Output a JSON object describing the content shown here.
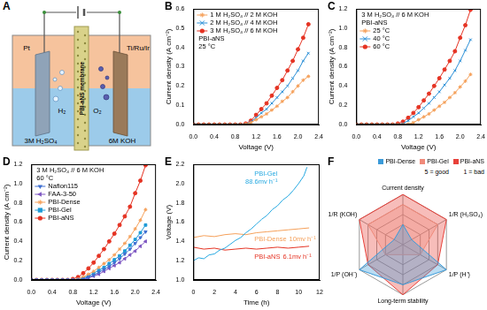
{
  "diagram": {
    "panel": "A",
    "cathode": "Pt",
    "anode": "Ti/Ru/Ir",
    "membrane": "PBI-aNS membrane",
    "catholyte": "3M H₂SO₄",
    "anolyte": "6M KOH",
    "cathode_gas": "H₂",
    "anode_gas": "O₂"
  },
  "chart_data": [
    {
      "panel": "B",
      "type": "line",
      "x_label": "Voltage (V)",
      "y_label": "Current density (A cm⁻²)",
      "x": [
        0,
        0.1,
        0.2,
        0.3,
        0.4,
        0.5,
        0.6,
        0.7,
        0.8,
        0.9,
        1.0,
        1.1,
        1.2,
        1.3,
        1.4,
        1.5,
        1.6,
        1.7,
        1.8,
        1.9,
        2.0,
        2.1,
        2.2
      ],
      "series": [
        {
          "name": "1 M H₂SO₄ // 2 M KOH",
          "color": "#f5a05a",
          "marker": "star",
          "line_style": "solid",
          "values": [
            0,
            0,
            0,
            0,
            0,
            0,
            0,
            0,
            0,
            0,
            0.002,
            0.01,
            0.025,
            0.04,
            0.055,
            0.075,
            0.095,
            0.12,
            0.14,
            0.17,
            0.2,
            0.23,
            0.25
          ]
        },
        {
          "name": "2 M H₂SO₄ // 4 M KOH",
          "color": "#2b8fd6",
          "marker": "x",
          "line_style": "solid",
          "values": [
            0,
            0,
            0,
            0,
            0,
            0,
            0,
            0,
            0,
            0,
            0.003,
            0.015,
            0.035,
            0.06,
            0.08,
            0.11,
            0.14,
            0.17,
            0.2,
            0.24,
            0.28,
            0.33,
            0.37
          ]
        },
        {
          "name": "3 M H₂SO₄ // 6 M KOH",
          "color": "#e53323",
          "marker": "circle",
          "line_style": "solid",
          "values": [
            0,
            0,
            0,
            0,
            0,
            0,
            0,
            0,
            0,
            0,
            0.005,
            0.02,
            0.05,
            0.08,
            0.11,
            0.15,
            0.19,
            0.23,
            0.28,
            0.33,
            0.39,
            0.45,
            0.52
          ]
        }
      ],
      "xlim": [
        0,
        2.4
      ],
      "xticks": [
        {
          "value": 0,
          "label": "0.0"
        },
        0.4,
        0.8,
        1.2,
        1.6,
        {
          "value": 2,
          "label": "2.0"
        },
        2.4
      ],
      "ylim": [
        0,
        0.6
      ],
      "yticks": [
        {
          "value": 0,
          "label": "0.0"
        },
        0.1,
        0.2,
        0.3,
        0.4,
        0.5,
        0.6
      ],
      "grid": false,
      "legend": "upper left",
      "annotations": [
        "PBI-aNS",
        "25 °C"
      ]
    },
    {
      "panel": "C",
      "type": "line",
      "x_label": "Voltage (V)",
      "y_label": "Current density (A cm⁻²)",
      "x": [
        0,
        0.1,
        0.2,
        0.3,
        0.4,
        0.5,
        0.6,
        0.7,
        0.8,
        0.9,
        1.0,
        1.1,
        1.2,
        1.3,
        1.4,
        1.5,
        1.6,
        1.7,
        1.8,
        1.9,
        2.0,
        2.1,
        2.2
      ],
      "series": [
        {
          "name": "25 °C",
          "color": "#f5a05a",
          "marker": "star",
          "line_style": "solid",
          "values": [
            0,
            0,
            0,
            0,
            0,
            0,
            0,
            0,
            0,
            0,
            0.005,
            0.02,
            0.05,
            0.08,
            0.11,
            0.15,
            0.19,
            0.23,
            0.28,
            0.33,
            0.39,
            0.45,
            0.52
          ]
        },
        {
          "name": "40 °C",
          "color": "#2b8fd6",
          "marker": "x",
          "line_style": "solid",
          "values": [
            0,
            0,
            0,
            0,
            0,
            0,
            0,
            0,
            0,
            0.01,
            0.04,
            0.08,
            0.12,
            0.17,
            0.22,
            0.28,
            0.34,
            0.41,
            0.48,
            0.56,
            0.66,
            0.77,
            0.88
          ]
        },
        {
          "name": "60 °C",
          "color": "#e53323",
          "marker": "circle",
          "line_style": "solid",
          "values": [
            0,
            0,
            0,
            0,
            0,
            0,
            0,
            0,
            0.01,
            0.03,
            0.07,
            0.12,
            0.18,
            0.25,
            0.32,
            0.4,
            0.48,
            0.57,
            0.66,
            0.76,
            0.9,
            1.03,
            1.19
          ]
        }
      ],
      "xlim": [
        0,
        2.4
      ],
      "xticks": [
        {
          "value": 0,
          "label": "0.0"
        },
        0.4,
        0.8,
        1.2,
        1.6,
        {
          "value": 2,
          "label": "2.0"
        },
        2.4
      ],
      "ylim": [
        0,
        1.2
      ],
      "yticks": [
        {
          "value": 0,
          "label": "0.0"
        },
        0.2,
        0.4,
        0.6,
        0.8,
        {
          "value": 1,
          "label": "1.0"
        },
        1.2
      ],
      "grid": false,
      "legend": "upper left",
      "annotations": [
        "3 M H₂SO₄ // 6 M KOH",
        "PBI-aNS"
      ]
    },
    {
      "panel": "D",
      "type": "line",
      "x_label": "Voltage (V)",
      "y_label": "Current density (A cm⁻²)",
      "x": [
        0,
        0.1,
        0.2,
        0.3,
        0.4,
        0.5,
        0.6,
        0.7,
        0.8,
        0.9,
        1.0,
        1.1,
        1.2,
        1.3,
        1.4,
        1.5,
        1.6,
        1.7,
        1.8,
        1.9,
        2.0,
        2.1,
        2.2
      ],
      "series": [
        {
          "name": "Nafion115",
          "color": "#3f6fd1",
          "marker": "triangle-down",
          "line_style": "solid",
          "values": [
            0,
            0,
            0,
            0,
            0,
            0,
            0,
            0,
            0,
            0,
            0.01,
            0.03,
            0.05,
            0.08,
            0.11,
            0.14,
            0.18,
            0.22,
            0.27,
            0.32,
            0.38,
            0.44,
            0.5
          ]
        },
        {
          "name": "FAA-3-50",
          "color": "#7e57c2",
          "marker": "triangle-left",
          "line_style": "solid",
          "values": [
            0,
            0,
            0,
            0,
            0,
            0,
            0,
            0,
            0,
            0,
            0.005,
            0.02,
            0.04,
            0.06,
            0.09,
            0.12,
            0.15,
            0.18,
            0.22,
            0.26,
            0.3,
            0.35,
            0.4
          ]
        },
        {
          "name": "PBI-Dense",
          "color": "#f5a05a",
          "marker": "star",
          "line_style": "solid",
          "values": [
            0,
            0,
            0,
            0,
            0,
            0,
            0,
            0,
            0,
            0.01,
            0.03,
            0.06,
            0.09,
            0.13,
            0.17,
            0.21,
            0.26,
            0.32,
            0.38,
            0.45,
            0.53,
            0.62,
            0.73
          ]
        },
        {
          "name": "PBI-Gel",
          "color": "#1e9ad6",
          "marker": "square",
          "line_style": "solid",
          "values": [
            0,
            0,
            0,
            0,
            0,
            0,
            0,
            0,
            0,
            0.005,
            0.02,
            0.04,
            0.07,
            0.1,
            0.13,
            0.17,
            0.21,
            0.25,
            0.3,
            0.36,
            0.42,
            0.49,
            0.57
          ]
        },
        {
          "name": "PBI-aNS",
          "color": "#e53323",
          "marker": "circle",
          "line_style": "solid",
          "values": [
            0,
            0,
            0,
            0,
            0,
            0,
            0,
            0,
            0.01,
            0.03,
            0.07,
            0.12,
            0.18,
            0.25,
            0.32,
            0.4,
            0.48,
            0.57,
            0.66,
            0.76,
            0.9,
            1.03,
            1.19
          ]
        }
      ],
      "xlim": [
        0,
        2.4
      ],
      "xticks": [
        {
          "value": 0,
          "label": "0.0"
        },
        0.4,
        0.8,
        1.2,
        1.6,
        {
          "value": 2,
          "label": "2.0"
        },
        2.4
      ],
      "ylim": [
        0,
        1.2
      ],
      "yticks": [
        {
          "value": 0,
          "label": "0.0"
        },
        0.2,
        0.4,
        0.6,
        0.8,
        {
          "value": 1,
          "label": "1.0"
        },
        1.2
      ],
      "grid": false,
      "legend": "upper left",
      "annotations": [
        "3 M H₂SO₄ // 6 M KOH",
        "60 °C"
      ]
    },
    {
      "panel": "E",
      "type": "line",
      "x_label": "Time (h)",
      "y_label": "Voltage (V)",
      "series": [
        {
          "name": "PBI-Gel",
          "annotation": "88.6mv h⁻¹",
          "color": "#27a9e1",
          "marker": "none",
          "line_style": "solid",
          "x": [
            0,
            0.5,
            1,
            1.5,
            2,
            2.5,
            3,
            3.5,
            4,
            4.5,
            5,
            5.5,
            6,
            6.5,
            7,
            7.5,
            8,
            8.5,
            9,
            9.5,
            10,
            10.5,
            10.8
          ],
          "values": [
            1.2,
            1.23,
            1.22,
            1.26,
            1.27,
            1.31,
            1.33,
            1.37,
            1.41,
            1.44,
            1.49,
            1.53,
            1.58,
            1.63,
            1.67,
            1.73,
            1.77,
            1.83,
            1.87,
            1.93,
            2.0,
            2.08,
            2.17
          ]
        },
        {
          "name": "PBI-Dense",
          "annotation": "10mv h⁻¹",
          "color": "#f5a05a",
          "marker": "none",
          "line_style": "solid",
          "x": [
            0,
            1,
            2,
            3,
            4,
            5,
            6,
            7,
            8,
            9,
            10,
            11
          ],
          "values": [
            1.44,
            1.46,
            1.45,
            1.47,
            1.48,
            1.47,
            1.49,
            1.5,
            1.51,
            1.52,
            1.53,
            1.54
          ]
        },
        {
          "name": "PBI-aNS",
          "annotation": "6.1mv h⁻¹",
          "color": "#e53323",
          "marker": "none",
          "line_style": "solid",
          "x": [
            0,
            1,
            2,
            3,
            4,
            5,
            6,
            7,
            8,
            9,
            10,
            11
          ],
          "values": [
            1.34,
            1.32,
            1.33,
            1.31,
            1.32,
            1.33,
            1.32,
            1.33,
            1.34,
            1.33,
            1.34,
            1.35
          ]
        }
      ],
      "xlim": [
        0,
        12
      ],
      "xticks": [
        0,
        2,
        4,
        6,
        8,
        10,
        12
      ],
      "ylim": [
        1,
        2.2
      ],
      "yticks": [
        {
          "value": 1,
          "label": "1.0"
        },
        1.2,
        1.4,
        1.6,
        1.8,
        {
          "value": 2,
          "label": "2.0"
        },
        2.2
      ],
      "grid": false
    },
    {
      "panel": "F",
      "type": "radar",
      "categories": [
        "Current density",
        "1/R (H₂SO₄)",
        "1/P (H⁺)",
        "Long-term stability",
        "1/P (OH⁻)",
        "1/R (KOH)"
      ],
      "series": [
        {
          "name": "PBI-Dense",
          "color": "#3a9ad9",
          "values": [
            2,
            1,
            5,
            4,
            5,
            1
          ]
        },
        {
          "name": "PBI-Gel",
          "color": "#f08a7a",
          "values": [
            4,
            4,
            2,
            1,
            2,
            4
          ]
        },
        {
          "name": "PBI-aNS",
          "color": "#e8413a",
          "values": [
            5,
            5,
            4,
            5,
            4,
            5
          ]
        }
      ],
      "ylim": [
        0,
        5
      ],
      "yticks": [
        1,
        2,
        3,
        4,
        5
      ],
      "tick_labels": false,
      "grid": true,
      "legend": "upper right",
      "annotations": [
        "5 = good",
        "1 = bad"
      ]
    }
  ]
}
